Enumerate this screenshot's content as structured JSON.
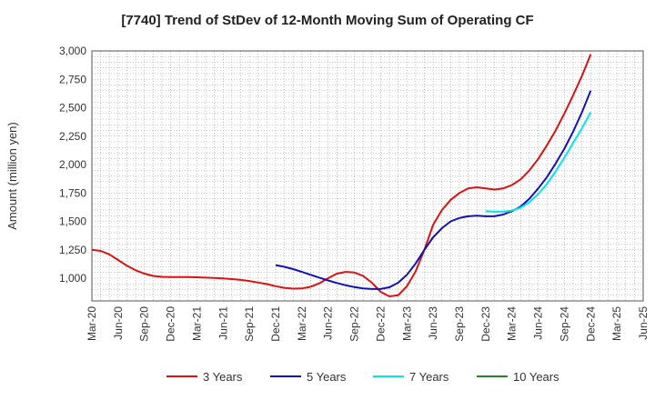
{
  "chart_data": {
    "type": "line",
    "title": "[7740]  Trend of StDev of 12-Month Moving Sum of Operating CF",
    "ylabel": "Amount (million yen)",
    "xlabel": "",
    "ylim": [
      800,
      3000
    ],
    "yticks": [
      1000,
      1250,
      1500,
      1750,
      2000,
      2250,
      2500,
      2750,
      3000
    ],
    "ytick_labels": [
      "1,000",
      "1,250",
      "1,500",
      "1,750",
      "2,000",
      "2,250",
      "2,500",
      "2,750",
      "3,000"
    ],
    "x_start": "Mar-20",
    "x_end": "Jun-25",
    "xtick_labels": [
      "Mar-20",
      "Jun-20",
      "Sep-20",
      "Dec-20",
      "Mar-21",
      "Jun-21",
      "Sep-21",
      "Dec-21",
      "Mar-22",
      "Jun-22",
      "Sep-22",
      "Dec-22",
      "Mar-23",
      "Jun-23",
      "Sep-23",
      "Dec-23",
      "Mar-24",
      "Jun-24",
      "Sep-24",
      "Dec-24",
      "Mar-25",
      "Jun-25"
    ],
    "grid": true,
    "legend_position": "bottom",
    "series": [
      {
        "name": "3 Years",
        "color": "#dd1111",
        "x": [
          "Mar-20",
          "Apr-20",
          "May-20",
          "Jun-20",
          "Jul-20",
          "Aug-20",
          "Sep-20",
          "Oct-20",
          "Nov-20",
          "Dec-20",
          "Jan-21",
          "Feb-21",
          "Mar-21",
          "Apr-21",
          "May-21",
          "Jun-21",
          "Jul-21",
          "Aug-21",
          "Sep-21",
          "Oct-21",
          "Nov-21",
          "Dec-21",
          "Jan-22",
          "Feb-22",
          "Mar-22",
          "Apr-22",
          "May-22",
          "Jun-22",
          "Jul-22",
          "Aug-22",
          "Sep-22",
          "Oct-22",
          "Nov-22",
          "Dec-22",
          "Jan-23",
          "Feb-23",
          "Mar-23",
          "Apr-23",
          "May-23",
          "Jun-23",
          "Jul-23",
          "Aug-23",
          "Sep-23",
          "Oct-23",
          "Nov-23",
          "Dec-23",
          "Jan-24",
          "Feb-24",
          "Mar-24",
          "Apr-24",
          "May-24",
          "Jun-24",
          "Jul-24",
          "Aug-24",
          "Sep-24",
          "Oct-24",
          "Nov-24",
          "Dec-24"
        ],
        "values": [
          1250,
          1240,
          1210,
          1160,
          1110,
          1070,
          1040,
          1020,
          1012,
          1010,
          1010,
          1010,
          1008,
          1005,
          1002,
          998,
          992,
          985,
          975,
          962,
          948,
          930,
          915,
          908,
          910,
          925,
          955,
          1000,
          1040,
          1055,
          1050,
          1020,
          960,
          880,
          840,
          850,
          930,
          1060,
          1250,
          1470,
          1600,
          1690,
          1750,
          1790,
          1800,
          1790,
          1780,
          1790,
          1820,
          1870,
          1950,
          2050,
          2170,
          2300,
          2450,
          2610,
          2780,
          2970
        ]
      },
      {
        "name": "5 Years",
        "color": "#1111bb",
        "x": [
          "Dec-21",
          "Jan-22",
          "Feb-22",
          "Mar-22",
          "Apr-22",
          "May-22",
          "Jun-22",
          "Jul-22",
          "Aug-22",
          "Sep-22",
          "Oct-22",
          "Nov-22",
          "Dec-22",
          "Jan-23",
          "Feb-23",
          "Mar-23",
          "Apr-23",
          "May-23",
          "Jun-23",
          "Jul-23",
          "Aug-23",
          "Sep-23",
          "Oct-23",
          "Nov-23",
          "Dec-23",
          "Jan-24",
          "Feb-24",
          "Mar-24",
          "Apr-24",
          "May-24",
          "Jun-24",
          "Jul-24",
          "Aug-24",
          "Sep-24",
          "Oct-24",
          "Nov-24",
          "Dec-24"
        ],
        "values": [
          1115,
          1100,
          1080,
          1055,
          1030,
          1005,
          980,
          958,
          938,
          922,
          910,
          905,
          905,
          920,
          960,
          1030,
          1130,
          1250,
          1360,
          1440,
          1500,
          1530,
          1545,
          1550,
          1545,
          1545,
          1560,
          1590,
          1630,
          1700,
          1790,
          1890,
          2010,
          2140,
          2290,
          2460,
          2650
        ]
      },
      {
        "name": "7 Years",
        "color": "#00e5ee",
        "x": [
          "Dec-23",
          "Jan-24",
          "Feb-24",
          "Mar-24",
          "Apr-24",
          "May-24",
          "Jun-24",
          "Jul-24",
          "Aug-24",
          "Sep-24",
          "Oct-24",
          "Nov-24",
          "Dec-24"
        ],
        "values": [
          1590,
          1585,
          1585,
          1595,
          1620,
          1670,
          1740,
          1830,
          1940,
          2060,
          2190,
          2320,
          2460
        ]
      },
      {
        "name": "10 Years",
        "color": "#228822",
        "x": [],
        "values": []
      }
    ]
  }
}
